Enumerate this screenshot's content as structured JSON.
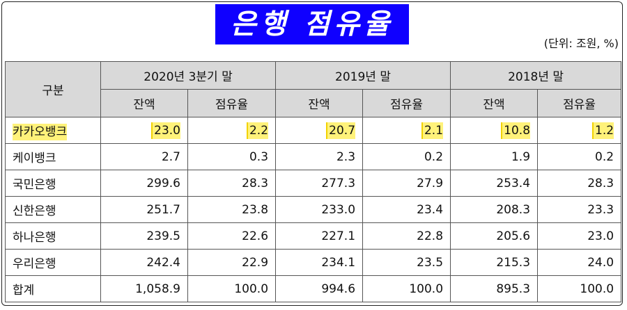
{
  "title": "은행 점유율",
  "unit_note": "(단위: 조원, %)",
  "table": {
    "header_corner": "구분",
    "periods": [
      "2020년 3분기 말",
      "2019년 말",
      "2018년 말"
    ],
    "sub_headers": [
      "잔액",
      "점유율",
      "잔액",
      "점유율",
      "잔액",
      "점유율"
    ],
    "rows": [
      {
        "label": "카카오뱅크",
        "values": [
          "23.0",
          "2.2",
          "20.7",
          "2.1",
          "10.8",
          "1.2"
        ]
      },
      {
        "label": "케이뱅크",
        "values": [
          "2.7",
          "0.3",
          "2.3",
          "0.2",
          "1.9",
          "0.2"
        ]
      },
      {
        "label": "국민은행",
        "values": [
          "299.6",
          "28.3",
          "277.3",
          "27.9",
          "253.4",
          "28.3"
        ]
      },
      {
        "label": "신한은행",
        "values": [
          "251.7",
          "23.8",
          "233.0",
          "23.4",
          "208.3",
          "23.3"
        ]
      },
      {
        "label": "하나은행",
        "values": [
          "239.5",
          "22.6",
          "227.1",
          "22.8",
          "205.6",
          "23.0"
        ]
      },
      {
        "label": "우리은행",
        "values": [
          "242.4",
          "22.9",
          "234.1",
          "23.5",
          "215.3",
          "24.0"
        ]
      },
      {
        "label": "합계",
        "values": [
          "1,058.9",
          "100.0",
          "994.6",
          "100.0",
          "895.3",
          "100.0"
        ]
      }
    ]
  },
  "colors": {
    "title_bg": "#0f00ff",
    "header_bg": "#d9d9d9",
    "highlight": "#fff27a"
  }
}
